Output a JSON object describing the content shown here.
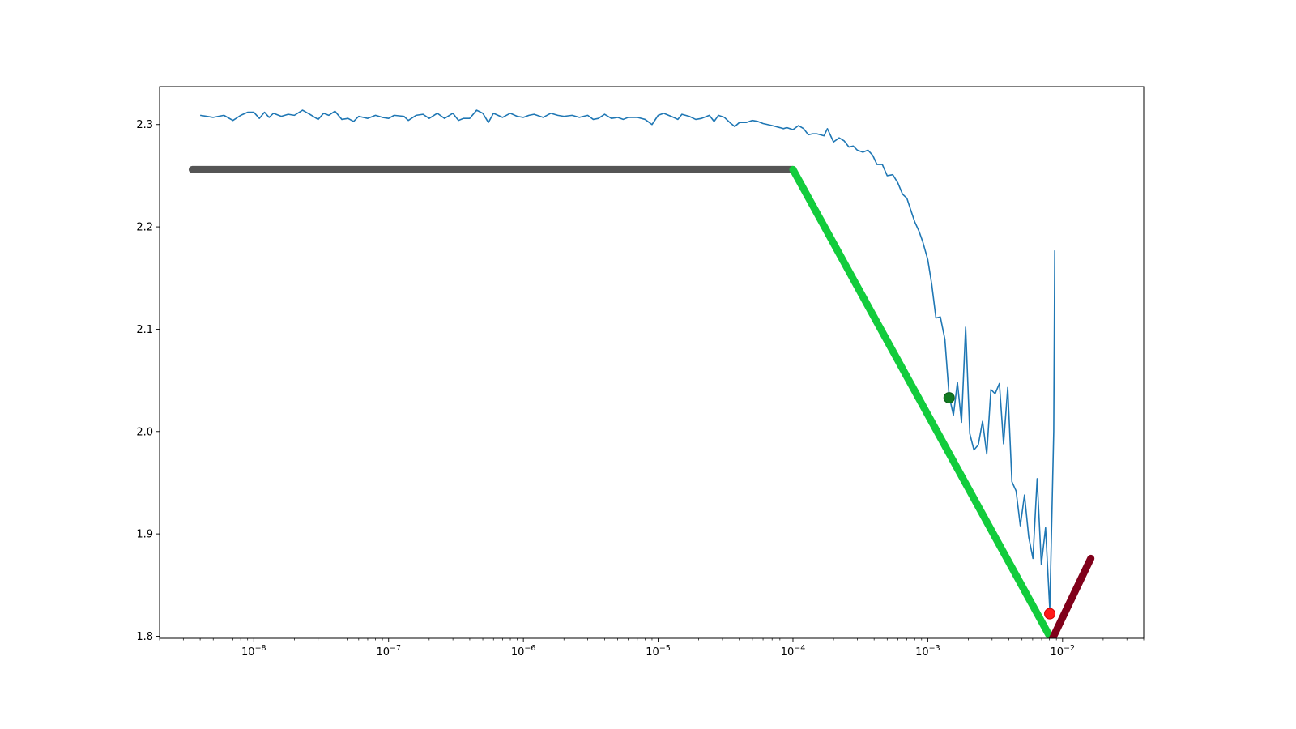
{
  "chart_data": {
    "type": "line",
    "title": "",
    "xlabel": "",
    "ylabel": "",
    "xscale": "log",
    "xlim": [
      2e-09,
      0.04
    ],
    "ylim": [
      1.798,
      2.337
    ],
    "grid": false,
    "legend": "none",
    "x_ticks": [
      {
        "value": 1e-08,
        "base": "10",
        "exp": "−8"
      },
      {
        "value": 1e-07,
        "base": "10",
        "exp": "−7"
      },
      {
        "value": 1e-06,
        "base": "10",
        "exp": "−6"
      },
      {
        "value": 1e-05,
        "base": "10",
        "exp": "−5"
      },
      {
        "value": 0.0001,
        "base": "10",
        "exp": "−4"
      },
      {
        "value": 0.001,
        "base": "10",
        "exp": "−3"
      },
      {
        "value": 0.01,
        "base": "10",
        "exp": "−2"
      }
    ],
    "y_ticks": [
      {
        "value": 1.8,
        "label": "1.8"
      },
      {
        "value": 1.9,
        "label": "1.9"
      },
      {
        "value": 2.0,
        "label": "2.0"
      },
      {
        "value": 2.1,
        "label": "2.1"
      },
      {
        "value": 2.2,
        "label": "2.2"
      },
      {
        "value": 2.3,
        "label": "2.3"
      }
    ],
    "series": [
      {
        "color": "#1f77b4",
        "line_width": 1.6,
        "kind": "line",
        "points": [
          [
            4e-09,
            2.309
          ],
          [
            5e-09,
            2.307
          ],
          [
            6e-09,
            2.309
          ],
          [
            7e-09,
            2.304
          ],
          [
            8e-09,
            2.309
          ],
          [
            9e-09,
            2.312
          ],
          [
            1e-08,
            2.312
          ],
          [
            1.1e-08,
            2.306
          ],
          [
            1.2e-08,
            2.312
          ],
          [
            1.3e-08,
            2.307
          ],
          [
            1.4e-08,
            2.311
          ],
          [
            1.6e-08,
            2.308
          ],
          [
            1.8e-08,
            2.31
          ],
          [
            2e-08,
            2.309
          ],
          [
            2.3e-08,
            2.314
          ],
          [
            2.6e-08,
            2.31
          ],
          [
            3e-08,
            2.305
          ],
          [
            3.3e-08,
            2.311
          ],
          [
            3.6e-08,
            2.309
          ],
          [
            4e-08,
            2.313
          ],
          [
            4.5e-08,
            2.305
          ],
          [
            5e-08,
            2.306
          ],
          [
            5.5e-08,
            2.303
          ],
          [
            6e-08,
            2.308
          ],
          [
            7e-08,
            2.306
          ],
          [
            8e-08,
            2.309
          ],
          [
            9e-08,
            2.307
          ],
          [
            1e-07,
            2.306
          ],
          [
            1.1e-07,
            2.309
          ],
          [
            1.3e-07,
            2.308
          ],
          [
            1.4e-07,
            2.304
          ],
          [
            1.6e-07,
            2.309
          ],
          [
            1.8e-07,
            2.31
          ],
          [
            2e-07,
            2.306
          ],
          [
            2.3e-07,
            2.311
          ],
          [
            2.6e-07,
            2.306
          ],
          [
            3e-07,
            2.311
          ],
          [
            3.3e-07,
            2.304
          ],
          [
            3.6e-07,
            2.306
          ],
          [
            4e-07,
            2.306
          ],
          [
            4.5e-07,
            2.314
          ],
          [
            5e-07,
            2.311
          ],
          [
            5.5e-07,
            2.302
          ],
          [
            6e-07,
            2.311
          ],
          [
            7e-07,
            2.307
          ],
          [
            8e-07,
            2.311
          ],
          [
            9e-07,
            2.308
          ],
          [
            1e-06,
            2.307
          ],
          [
            1.1e-06,
            2.309
          ],
          [
            1.2e-06,
            2.31
          ],
          [
            1.4e-06,
            2.307
          ],
          [
            1.6e-06,
            2.311
          ],
          [
            1.8e-06,
            2.309
          ],
          [
            2e-06,
            2.308
          ],
          [
            2.3e-06,
            2.309
          ],
          [
            2.6e-06,
            2.307
          ],
          [
            3e-06,
            2.309
          ],
          [
            3.3e-06,
            2.305
          ],
          [
            3.6e-06,
            2.306
          ],
          [
            4e-06,
            2.31
          ],
          [
            4.5e-06,
            2.306
          ],
          [
            5e-06,
            2.307
          ],
          [
            5.5e-06,
            2.305
          ],
          [
            6e-06,
            2.307
          ],
          [
            7e-06,
            2.307
          ],
          [
            8e-06,
            2.305
          ],
          [
            9e-06,
            2.3
          ],
          [
            1e-05,
            2.309
          ],
          [
            1.1e-05,
            2.311
          ],
          [
            1.3e-05,
            2.307
          ],
          [
            1.4e-05,
            2.305
          ],
          [
            1.5e-05,
            2.31
          ],
          [
            1.7e-05,
            2.308
          ],
          [
            1.9e-05,
            2.305
          ],
          [
            2.1e-05,
            2.306
          ],
          [
            2.4e-05,
            2.309
          ],
          [
            2.6e-05,
            2.303
          ],
          [
            2.8e-05,
            2.309
          ],
          [
            3.1e-05,
            2.307
          ],
          [
            3.4e-05,
            2.302
          ],
          [
            3.7e-05,
            2.298
          ],
          [
            4e-05,
            2.302
          ],
          [
            4.5e-05,
            2.302
          ],
          [
            5e-05,
            2.304
          ],
          [
            5.5e-05,
            2.303
          ],
          [
            6e-05,
            2.301
          ],
          [
            7e-05,
            2.299
          ],
          [
            8e-05,
            2.297
          ],
          [
            8.5e-05,
            2.296
          ],
          [
            9e-05,
            2.297
          ],
          [
            0.0001,
            2.295
          ],
          [
            0.00011,
            2.299
          ],
          [
            0.00012,
            2.296
          ],
          [
            0.00013,
            2.29
          ],
          [
            0.00014,
            2.291
          ],
          [
            0.00015,
            2.291
          ],
          [
            0.00017,
            2.289
          ],
          [
            0.00018,
            2.296
          ],
          [
            0.0002,
            2.283
          ],
          [
            0.00022,
            2.287
          ],
          [
            0.00024,
            2.284
          ],
          [
            0.00026,
            2.278
          ],
          [
            0.00028,
            2.279
          ],
          [
            0.0003,
            2.275
          ],
          [
            0.00033,
            2.273
          ],
          [
            0.00036,
            2.275
          ],
          [
            0.00039,
            2.27
          ],
          [
            0.00042,
            2.261
          ],
          [
            0.00046,
            2.261
          ],
          [
            0.0005,
            2.25
          ],
          [
            0.00055,
            2.251
          ],
          [
            0.0006,
            2.243
          ],
          [
            0.00065,
            2.232
          ],
          [
            0.0007,
            2.228
          ],
          [
            0.00075,
            2.216
          ],
          [
            0.0008,
            2.205
          ],
          [
            0.00086,
            2.196
          ],
          [
            0.00092,
            2.185
          ],
          [
            0.001,
            2.168
          ],
          [
            0.00107,
            2.144
          ],
          [
            0.00115,
            2.111
          ],
          [
            0.00124,
            2.112
          ],
          [
            0.00134,
            2.09
          ],
          [
            0.00144,
            2.035
          ],
          [
            0.00155,
            2.016
          ],
          [
            0.00166,
            2.048
          ],
          [
            0.00178,
            2.009
          ],
          [
            0.00191,
            2.102
          ],
          [
            0.00205,
            1.998
          ],
          [
            0.0022,
            1.982
          ],
          [
            0.00237,
            1.987
          ],
          [
            0.00255,
            2.01
          ],
          [
            0.00274,
            1.978
          ],
          [
            0.00294,
            2.041
          ],
          [
            0.00316,
            2.037
          ],
          [
            0.0034,
            2.047
          ],
          [
            0.00365,
            1.988
          ],
          [
            0.00392,
            2.043
          ],
          [
            0.00421,
            1.951
          ],
          [
            0.00452,
            1.942
          ],
          [
            0.00486,
            1.908
          ],
          [
            0.00522,
            1.938
          ],
          [
            0.00561,
            1.897
          ],
          [
            0.00603,
            1.876
          ],
          [
            0.00648,
            1.954
          ],
          [
            0.00696,
            1.87
          ],
          [
            0.00748,
            1.906
          ],
          [
            0.00804,
            1.826
          ],
          [
            0.0086,
            2.0
          ],
          [
            0.00875,
            2.177
          ]
        ]
      },
      {
        "color": "#555555",
        "line_width": 9,
        "kind": "segment",
        "points": [
          [
            3.5e-09,
            2.256
          ],
          [
            0.0001,
            2.256
          ]
        ]
      },
      {
        "color": "#12cc3c",
        "line_width": 9,
        "kind": "segment",
        "points": [
          [
            0.0001,
            2.256
          ],
          [
            0.0081,
            1.799
          ]
        ]
      },
      {
        "color": "#80001a",
        "line_width": 9,
        "kind": "segment",
        "points": [
          [
            0.0083,
            1.796
          ],
          [
            0.0162,
            1.876
          ]
        ]
      }
    ],
    "markers": [
      {
        "x": 0.00144,
        "y": 2.033,
        "color": "#127a22",
        "stroke": "#0a5a16"
      },
      {
        "x": 0.00804,
        "y": 1.822,
        "color": "#ff1a1a",
        "stroke": "#d00000"
      }
    ]
  }
}
